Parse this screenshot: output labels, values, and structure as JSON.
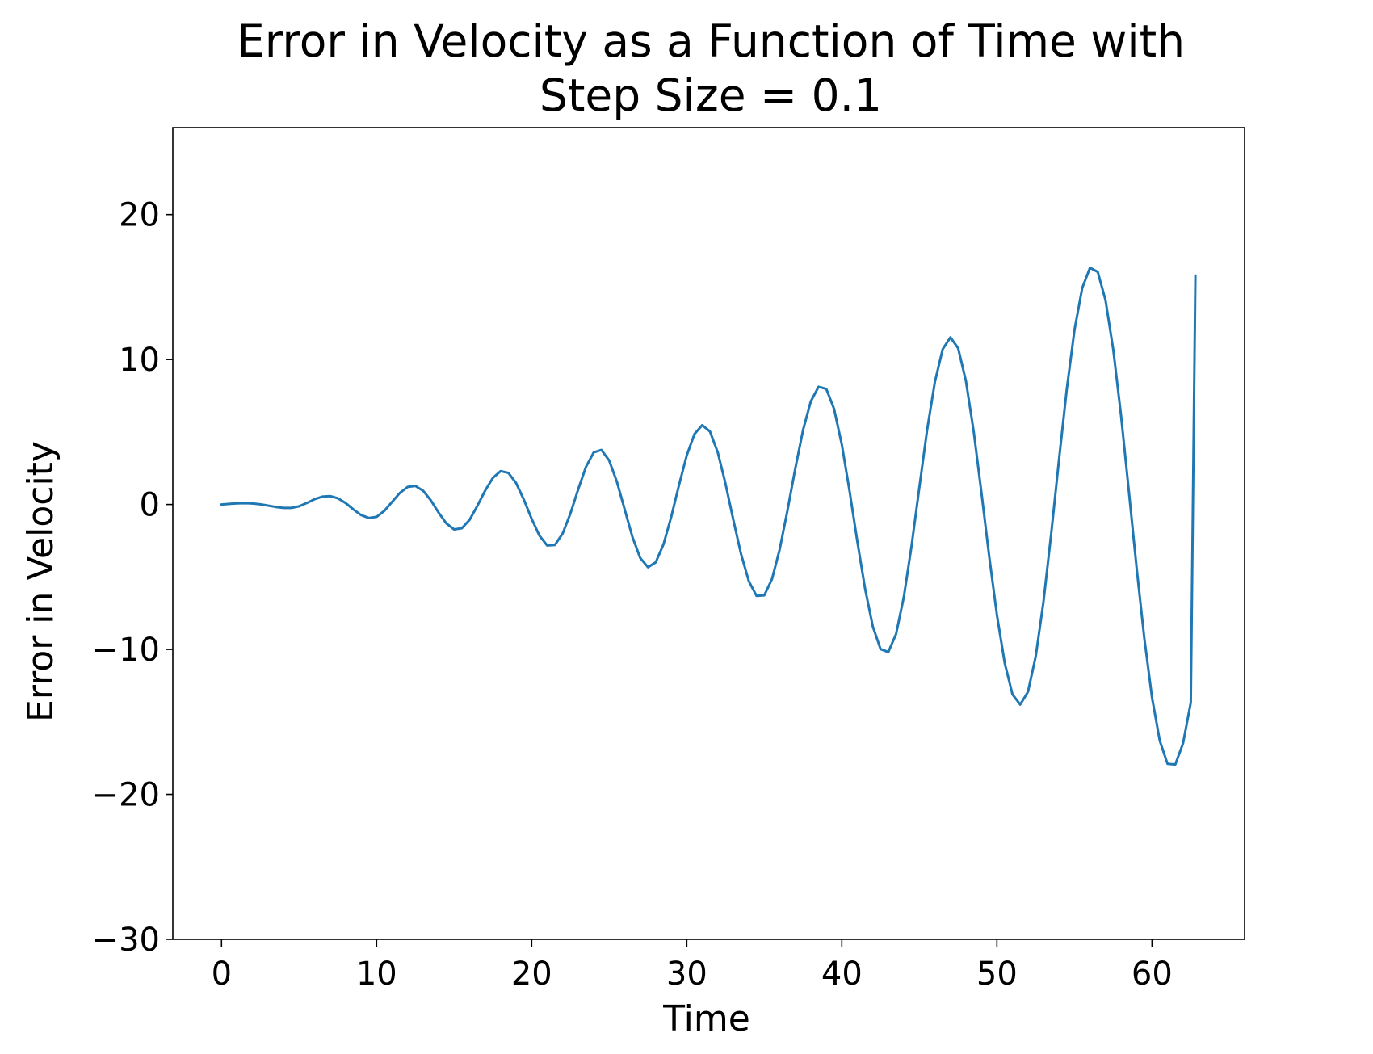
{
  "chart_data": {
    "type": "line",
    "title_lines": [
      "Error in Velocity as a Function of Time with",
      "Step Size = 0.1"
    ],
    "xlabel": "Time",
    "ylabel": "Error in Velocity",
    "xlim": [
      -3.14,
      65.97
    ],
    "ylim": [
      -30.0,
      26.0
    ],
    "xticks": [
      0,
      10,
      20,
      30,
      40,
      50,
      60
    ],
    "yticks": [
      20,
      10,
      0,
      -10,
      -20,
      -30
    ],
    "xtick_labels": [
      "0",
      "10",
      "20",
      "30",
      "40",
      "50",
      "60"
    ],
    "ytick_labels": [
      "20",
      "10",
      "0",
      "−10",
      "−20",
      "−30"
    ],
    "grid": false,
    "legend": "none",
    "series": [
      {
        "color": "#1f77b4",
        "x": [
          0,
          0.5,
          1.0,
          1.5,
          2.0,
          2.5,
          3.0,
          3.5,
          4.0,
          4.5,
          5.0,
          5.5,
          6.0,
          6.5,
          7.0,
          7.5,
          8.0,
          8.5,
          9.0,
          9.5,
          10.0,
          10.5,
          11.0,
          11.5,
          12.0,
          12.5,
          13.0,
          13.5,
          14.0,
          14.5,
          15.0,
          15.5,
          16.0,
          16.5,
          17.0,
          17.5,
          18.0,
          18.5,
          19.0,
          19.5,
          20.0,
          20.5,
          21.0,
          21.5,
          22.0,
          22.5,
          23.0,
          23.5,
          24.0,
          24.5,
          25.0,
          25.5,
          26.0,
          26.5,
          27.0,
          27.5,
          28.0,
          28.5,
          29.0,
          29.5,
          30.0,
          30.5,
          31.0,
          31.5,
          32.0,
          32.5,
          33.0,
          33.5,
          34.0,
          34.5,
          35.0,
          35.5,
          36.0,
          36.5,
          37.0,
          37.5,
          38.0,
          38.5,
          39.0,
          39.5,
          40.0,
          40.5,
          41.0,
          41.5,
          42.0,
          42.5,
          43.0,
          43.5,
          44.0,
          44.5,
          45.0,
          45.5,
          46.0,
          46.5,
          47.0,
          47.5,
          48.0,
          48.5,
          49.0,
          49.5,
          50.0,
          50.5,
          51.0,
          51.5,
          52.0,
          52.5,
          53.0,
          53.5,
          54.0,
          54.5,
          55.0,
          55.5,
          56.0,
          56.5,
          57.0,
          57.5,
          58.0,
          58.5,
          59.0,
          59.5,
          60.0,
          60.5,
          61.0,
          61.5,
          62.0,
          62.5,
          62.8
        ],
        "y": [
          0.0,
          0.04,
          0.08,
          0.09,
          0.07,
          0.01,
          -0.08,
          -0.17,
          -0.24,
          -0.24,
          -0.13,
          0.1,
          0.36,
          0.54,
          0.58,
          0.43,
          0.1,
          -0.34,
          -0.73,
          -0.93,
          -0.85,
          -0.44,
          0.18,
          0.8,
          1.21,
          1.28,
          0.95,
          0.28,
          -0.56,
          -1.31,
          -1.72,
          -1.64,
          -1.05,
          -0.09,
          0.96,
          1.84,
          2.3,
          2.18,
          1.47,
          0.32,
          -0.99,
          -2.15,
          -2.83,
          -2.79,
          -2.0,
          -0.62,
          1.05,
          2.59,
          3.59,
          3.76,
          3.03,
          1.55,
          -0.35,
          -2.25,
          -3.69,
          -4.33,
          -3.99,
          -2.75,
          -0.85,
          1.33,
          3.38,
          4.86,
          5.47,
          5.03,
          3.6,
          1.43,
          -1.04,
          -3.41,
          -5.28,
          -6.3,
          -6.27,
          -5.14,
          -3.07,
          -0.39,
          2.48,
          5.13,
          7.11,
          8.12,
          7.97,
          6.6,
          4.14,
          0.93,
          -2.54,
          -5.8,
          -8.42,
          -9.98,
          -10.18,
          -8.94,
          -6.38,
          -2.84,
          1.17,
          5.13,
          8.47,
          10.71,
          11.53,
          10.77,
          8.51,
          5.04,
          0.82,
          -3.58,
          -7.64,
          -10.94,
          -13.1,
          -13.81,
          -12.92,
          -10.48,
          -6.71,
          -2.0,
          3.08,
          7.93,
          12.04,
          14.94,
          16.33,
          16.04,
          14.1,
          10.69,
          6.16,
          0.98,
          -4.3,
          -9.2,
          -13.32,
          -16.3,
          -17.9,
          -17.94,
          -16.48,
          -13.66,
          15.8
        ]
      }
    ]
  }
}
